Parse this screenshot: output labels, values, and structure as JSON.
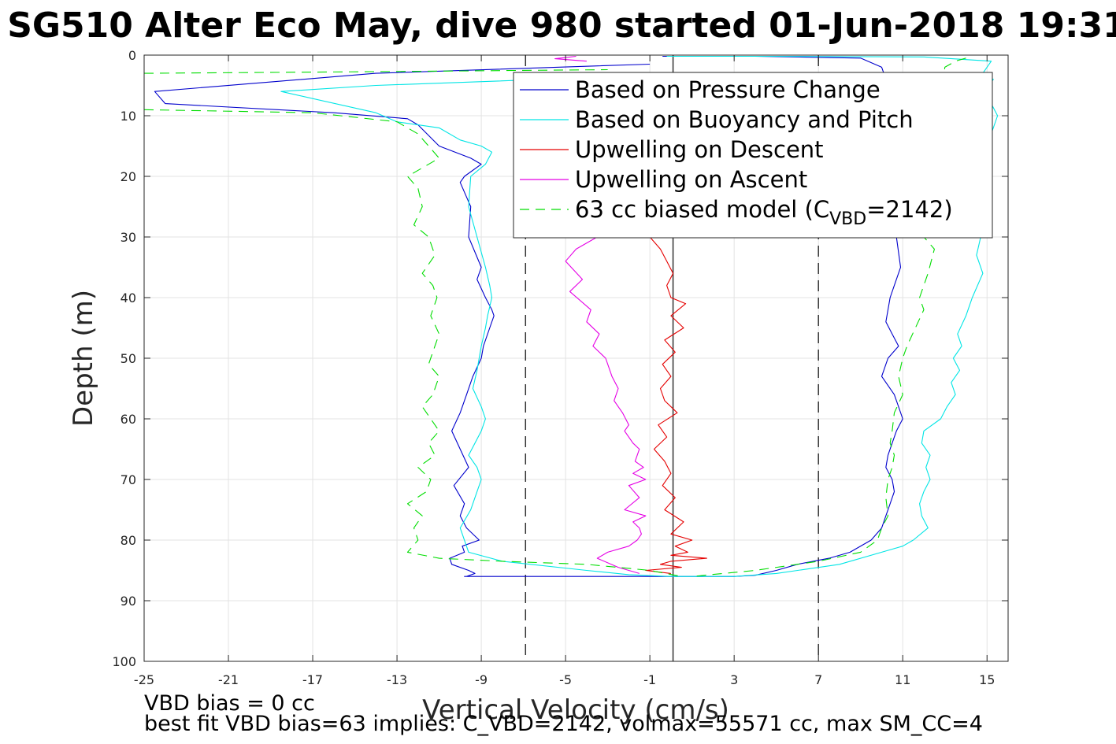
{
  "chart_data": {
    "type": "line",
    "title": "SG510 Alter Eco May, dive 980 started 01-Jun-2018 19:31",
    "xlabel": "Vertical Velocity (cm/s)",
    "ylabel": "Depth (m)",
    "xlim": [
      -25,
      16
    ],
    "ylim": [
      0,
      100
    ],
    "y_reversed": true,
    "grid": true,
    "legend_position": "top-right",
    "xticks": [
      -25,
      -21,
      -17,
      -13,
      -9,
      -5,
      -1,
      3,
      7,
      11,
      15
    ],
    "yticks": [
      0,
      10,
      20,
      30,
      40,
      50,
      60,
      70,
      80,
      90,
      100
    ],
    "vlines": [
      {
        "x": -6.9,
        "style": "dashed",
        "color": "#333333"
      },
      {
        "x": 0.1,
        "style": "solid",
        "color": "#333333"
      },
      {
        "x": 7.0,
        "style": "dashed",
        "color": "#333333"
      }
    ],
    "series": [
      {
        "name": "Based on Pressure Change",
        "color": "#0000cc",
        "dash": "solid",
        "segments": [
          {
            "x": [
              -1.0,
              -14.0,
              -24.5,
              -24.0,
              -16.0,
              -12.5,
              -12.0,
              -11.0,
              -9.5,
              -9.0,
              -9.8,
              -10.0,
              -9.5,
              -9.6,
              -9.0,
              -9.2,
              -8.8,
              -8.5,
              -8.4,
              -8.6,
              -8.9,
              -9.0,
              -9.4,
              -9.7,
              -10.0,
              -10.4,
              -10.0,
              -9.6,
              -10.3,
              -9.8,
              -10.0,
              -9.7,
              -9.1,
              -9.9,
              -9.8,
              -10.5,
              -10.4,
              -9.6,
              -9.3,
              -9.7,
              -9.8,
              -6.5,
              -3.0,
              -1.0,
              0.0,
              1.0,
              3.0
            ],
            "y": [
              1.5,
              3,
              6,
              8,
              9.5,
              10.5,
              11.5,
              15,
              17,
              18,
              20,
              21,
              25,
              30,
              35,
              37,
              40,
              42,
              43,
              45,
              48,
              50,
              53,
              56,
              59,
              62,
              65,
              68,
              71,
              74,
              76,
              78,
              80,
              81,
              82,
              83,
              84,
              85,
              85.5,
              86,
              86,
              86,
              86,
              86,
              86,
              86,
              86
            ]
          },
          {
            "x": [
              -0.4,
              4.0,
              9.0,
              10.0,
              10.3,
              10.5,
              10.6,
              10.8,
              10.5,
              10.7,
              10.9,
              10.6,
              10.4,
              10.2,
              10.5,
              10.8,
              10.3,
              10.0,
              10.6,
              10.8,
              11.0,
              10.7,
              10.5,
              10.3,
              10.2,
              10.5,
              10.6,
              10.4,
              10.2,
              10.0,
              9.5,
              8.5,
              7.5,
              6.0,
              5.0,
              4.0,
              3.0
            ],
            "y": [
              0.2,
              0.2,
              0.5,
              2,
              5,
              10,
              15,
              20,
              25,
              30,
              35,
              38,
              40,
              44,
              46,
              48,
              50,
              53,
              56,
              58,
              60,
              62,
              64,
              66,
              68,
              70,
              72,
              74,
              76,
              78,
              80,
              82,
              83,
              84,
              85,
              85.8,
              86
            ]
          }
        ]
      },
      {
        "name": "Based on Buoyancy and Pitch",
        "color": "#00e5e5",
        "dash": "solid",
        "segments": [
          {
            "x": [
              -6.0,
              -14.0,
              -18.5,
              -14.0,
              -13.0,
              -12.0,
              -11.0,
              -10.0,
              -9.0,
              -8.5,
              -8.8,
              -9.5,
              -9.6,
              -9.2,
              -8.8,
              -8.6,
              -8.5,
              -8.7,
              -8.8,
              -9.0,
              -9.2,
              -9.4,
              -9.0,
              -8.8,
              -9.0,
              -9.3,
              -9.6,
              -9.2,
              -9.0,
              -9.2,
              -9.5,
              -10.0,
              -9.6,
              -8.0,
              -4.0,
              -2.0,
              0.0,
              3.0
            ],
            "y": [
              4,
              5,
              6,
              9.5,
              11,
              11.5,
              12,
              14,
              15,
              16,
              18,
              20,
              25,
              30,
              35,
              38,
              40,
              43,
              45,
              48,
              52,
              55,
              58,
              60,
              62,
              64,
              66,
              68,
              70,
              72,
              75,
              78,
              82,
              83.5,
              85,
              85.7,
              86,
              86
            ]
          },
          {
            "x": [
              -0.2,
              5.0,
              12.0,
              15.2,
              14.8,
              15.3,
              14.9,
              15.5,
              15.0,
              14.8,
              15.2,
              14.7,
              14.5,
              14.8,
              14.3,
              14.0,
              13.6,
              13.8,
              13.4,
              13.7,
              13.3,
              13.5,
              13.1,
              12.8,
              12.0,
              11.9,
              12.3,
              12.1,
              12.3,
              12.0,
              11.8,
              11.9,
              12.2,
              11.5,
              11.0,
              10.0,
              8.0,
              5.0,
              3.0
            ],
            "y": [
              0.2,
              0.2,
              0.3,
              1,
              3,
              4,
              6,
              10,
              15,
              20,
              25,
              30,
              33,
              36,
              40,
              43,
              46,
              48,
              50,
              52,
              54,
              56,
              58,
              60,
              62,
              64,
              66,
              68,
              70,
              72,
              74,
              76,
              78,
              80,
              81,
              82,
              84,
              85.5,
              86
            ]
          }
        ]
      },
      {
        "name": "Upwelling on Descent",
        "color": "#e50000",
        "dash": "solid",
        "segments": [
          {
            "x": [
              -2.0,
              -3.0,
              -6.0,
              -2.0
            ],
            "y": [
              7,
              7.5,
              8,
              8.5
            ]
          },
          {
            "x": [
              -1.0,
              -0.5,
              -0.2,
              0.1,
              -0.2,
              0.0,
              0.7,
              0.0,
              0.6,
              -0.3,
              0.2,
              -0.4,
              0.0,
              -0.5,
              -0.3,
              0.3,
              -0.6,
              -0.2,
              -0.8,
              -0.3,
              0.0,
              -0.4,
              0.2,
              -0.3,
              0.6,
              0.0,
              1.0,
              0.2,
              0.8,
              0.0,
              1.7,
              0.0,
              -0.5,
              0.5,
              -1.2,
              0.0
            ],
            "y": [
              30,
              32,
              34,
              36,
              38,
              40,
              41,
              43,
              45,
              47,
              49,
              51,
              53,
              55,
              57,
              59,
              61,
              63,
              65,
              67,
              69,
              71,
              73,
              75,
              77,
              79,
              80,
              81,
              82,
              82.5,
              83,
              83.5,
              84,
              84.5,
              85,
              85.5
            ]
          }
        ]
      },
      {
        "name": "Upwelling on Ascent",
        "color": "#e500e5",
        "dash": "solid",
        "segments": [
          {
            "x": [
              -4.5,
              -5.0,
              -5.5,
              -4.0
            ],
            "y": [
              0.2,
              0.4,
              0.6,
              1
            ]
          },
          {
            "x": [
              -3.5,
              -4.5,
              -5.0,
              -4.2,
              -4.8,
              -3.8,
              -4.0,
              -3.4,
              -3.7,
              -3.1,
              -2.8,
              -2.5,
              -2.7,
              -2.3,
              -2.0,
              -2.2,
              -1.8,
              -1.5,
              -1.7,
              -1.3,
              -1.8,
              -1.2,
              -2.0,
              -1.5,
              -2.2,
              -1.2,
              -1.8,
              -1.5,
              -1.4,
              -1.6,
              -2.0,
              -3.0,
              -3.5,
              -2.5,
              -1.5
            ],
            "y": [
              30,
              32,
              34,
              37,
              39,
              42,
              44,
              46,
              48,
              50,
              53,
              55,
              57,
              59,
              61,
              62,
              64,
              65,
              67,
              68,
              69,
              70,
              71,
              73,
              75,
              76,
              77,
              78,
              79,
              80,
              81,
              82,
              83,
              84.5,
              85.5
            ]
          }
        ]
      },
      {
        "name": "63 cc biased model (C_VBD=2142)",
        "color": "#00dd00",
        "dash": "dashed",
        "segments": [
          {
            "x": [
              -25.0,
              -13.0,
              -3.0
            ],
            "y": [
              3,
              2.7,
              2.4
            ]
          },
          {
            "x": [
              -25.0,
              -17.0,
              -13.0,
              -12.0,
              -11.5,
              -11.0,
              -12.5,
              -12.0,
              -11.8,
              -12.2,
              -11.5,
              -11.2,
              -11.8,
              -11.3,
              -11.1,
              -11.4,
              -11.0,
              -11.2,
              -11.5,
              -11.0,
              -11.3,
              -11.8,
              -11.4,
              -11.0,
              -11.5,
              -11.2,
              -12.0,
              -11.4,
              -11.6,
              -12.5,
              -11.8,
              -12.2,
              -12.0,
              -12.5,
              -11.0,
              -8.0,
              -4.0,
              -1.0,
              0.5
            ],
            "y": [
              9,
              9.5,
              11,
              13,
              15,
              17,
              20,
              22,
              25,
              28,
              30,
              33,
              36,
              38,
              40,
              43,
              46,
              48,
              51,
              53,
              56,
              58,
              60,
              62,
              64,
              66,
              68,
              70,
              72,
              74,
              76,
              78,
              80,
              82,
              83,
              83.5,
              84,
              85,
              86
            ]
          },
          {
            "x": [
              14.0,
              13.5,
              13.0,
              12.0,
              12.5,
              12.2,
              11.8,
              12.0,
              11.6,
              11.2,
              11.0,
              10.8,
              11.0,
              10.6,
              10.5,
              10.4,
              10.6,
              10.5,
              10.3,
              10.2,
              10.3,
              10.0,
              9.8,
              9.0,
              7.0,
              4.0,
              1.0
            ],
            "y": [
              0.5,
              1,
              2,
              30,
              32,
              36,
              40,
              42,
              45,
              48,
              50,
              53,
              56,
              59,
              62,
              64,
              66,
              68,
              70,
              73,
              76,
              78,
              80,
              82,
              83.5,
              85,
              86
            ]
          }
        ]
      }
    ],
    "annotations": {
      "line1": "VBD bias = 0 cc",
      "line2": "best fit VBD bias=63 implies: C_VBD=2142, volmax=55571 cc, max SM_CC=4"
    }
  }
}
